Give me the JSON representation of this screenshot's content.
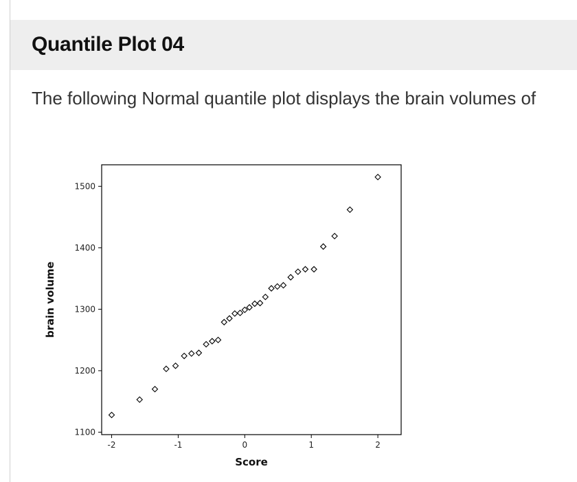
{
  "header": {
    "title": "Quantile Plot 04"
  },
  "intro": {
    "text": "The following Normal quantile plot displays the brain volumes of"
  },
  "chart_data": {
    "type": "scatter",
    "xlabel": "Score",
    "ylabel": "brain volume",
    "xlim": [
      -2.15,
      2.35
    ],
    "ylim": [
      1096,
      1535
    ],
    "x_ticks": [
      "-2",
      "-1",
      "0",
      "1",
      "2"
    ],
    "y_ticks": [
      "1100",
      "1200",
      "1300",
      "1400",
      "1500"
    ],
    "grid": false,
    "marker": "open-diamond",
    "points": [
      {
        "x": -2.0,
        "y": 1128
      },
      {
        "x": -1.58,
        "y": 1153
      },
      {
        "x": -1.35,
        "y": 1170
      },
      {
        "x": -1.18,
        "y": 1203
      },
      {
        "x": -1.04,
        "y": 1208
      },
      {
        "x": -0.91,
        "y": 1224
      },
      {
        "x": -0.8,
        "y": 1228
      },
      {
        "x": -0.69,
        "y": 1229
      },
      {
        "x": -0.58,
        "y": 1243
      },
      {
        "x": -0.49,
        "y": 1248
      },
      {
        "x": -0.4,
        "y": 1250
      },
      {
        "x": -0.31,
        "y": 1279
      },
      {
        "x": -0.23,
        "y": 1285
      },
      {
        "x": -0.15,
        "y": 1293
      },
      {
        "x": -0.07,
        "y": 1294
      },
      {
        "x": 0.0,
        "y": 1299
      },
      {
        "x": 0.07,
        "y": 1303
      },
      {
        "x": 0.15,
        "y": 1309
      },
      {
        "x": 0.23,
        "y": 1310
      },
      {
        "x": 0.31,
        "y": 1320
      },
      {
        "x": 0.4,
        "y": 1334
      },
      {
        "x": 0.49,
        "y": 1337
      },
      {
        "x": 0.58,
        "y": 1339
      },
      {
        "x": 0.69,
        "y": 1352
      },
      {
        "x": 0.8,
        "y": 1361
      },
      {
        "x": 0.91,
        "y": 1365
      },
      {
        "x": 1.04,
        "y": 1365
      },
      {
        "x": 1.18,
        "y": 1402
      },
      {
        "x": 1.35,
        "y": 1419
      },
      {
        "x": 1.58,
        "y": 1462
      },
      {
        "x": 2.0,
        "y": 1515
      }
    ]
  }
}
